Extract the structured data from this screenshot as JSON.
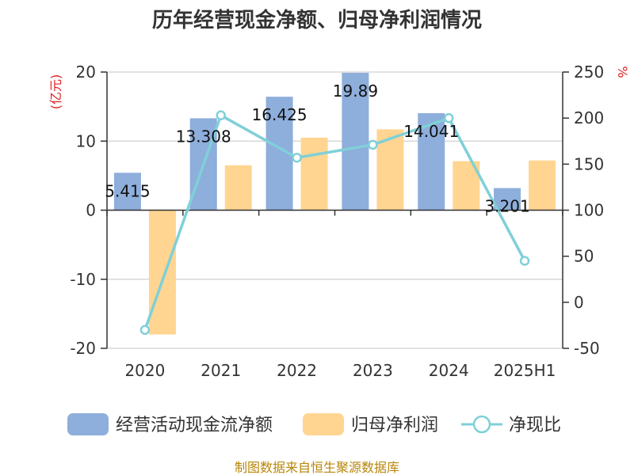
{
  "chart_data": {
    "type": "bar",
    "title": "历年经营现金净额、归母净利润情况",
    "categories": [
      "2020",
      "2021",
      "2022",
      "2023",
      "2024",
      "2025H1"
    ],
    "series": [
      {
        "name": "经营活动现金流净额",
        "type": "bar",
        "axis": "left",
        "color": "#8eaedc",
        "values": [
          5.415,
          13.308,
          16.425,
          19.89,
          14.041,
          3.201
        ]
      },
      {
        "name": "归母净利润",
        "type": "bar",
        "axis": "left",
        "color": "#ffd591",
        "values": [
          -18.0,
          6.5,
          10.5,
          11.7,
          7.1,
          7.2
        ]
      },
      {
        "name": "净现比",
        "type": "line",
        "axis": "right",
        "color": "#7fd0d8",
        "values": [
          -30,
          203,
          157,
          171,
          200,
          45
        ]
      }
    ],
    "data_labels": [
      "5.415",
      "13.308",
      "16.425",
      "19.89",
      "14.041",
      "3.201"
    ],
    "ylabel_left": "(亿元)",
    "ylabel_right": "%",
    "ylim_left": [
      -20,
      20
    ],
    "yticks_left": [
      20,
      10,
      0,
      -10,
      -20
    ],
    "ylim_right": [
      -50,
      250
    ],
    "yticks_right": [
      250,
      200,
      150,
      100,
      50,
      0,
      -50
    ],
    "grid": true,
    "legend_position": "bottom"
  },
  "source": "制图数据来自恒生聚源数据库"
}
